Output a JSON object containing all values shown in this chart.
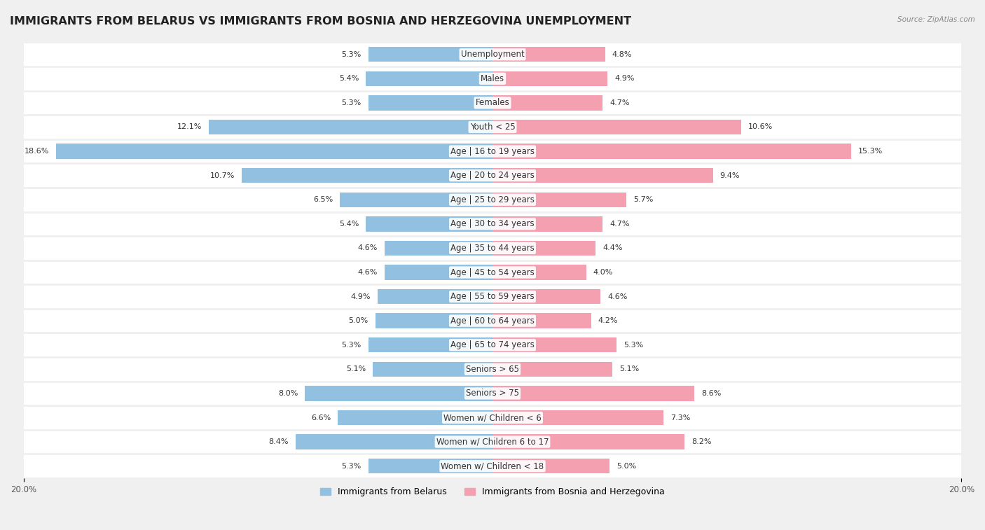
{
  "title": "IMMIGRANTS FROM BELARUS VS IMMIGRANTS FROM BOSNIA AND HERZEGOVINA UNEMPLOYMENT",
  "source": "Source: ZipAtlas.com",
  "categories": [
    "Unemployment",
    "Males",
    "Females",
    "Youth < 25",
    "Age | 16 to 19 years",
    "Age | 20 to 24 years",
    "Age | 25 to 29 years",
    "Age | 30 to 34 years",
    "Age | 35 to 44 years",
    "Age | 45 to 54 years",
    "Age | 55 to 59 years",
    "Age | 60 to 64 years",
    "Age | 65 to 74 years",
    "Seniors > 65",
    "Seniors > 75",
    "Women w/ Children < 6",
    "Women w/ Children 6 to 17",
    "Women w/ Children < 18"
  ],
  "belarus_values": [
    5.3,
    5.4,
    5.3,
    12.1,
    18.6,
    10.7,
    6.5,
    5.4,
    4.6,
    4.6,
    4.9,
    5.0,
    5.3,
    5.1,
    8.0,
    6.6,
    8.4,
    5.3
  ],
  "bosnia_values": [
    4.8,
    4.9,
    4.7,
    10.6,
    15.3,
    9.4,
    5.7,
    4.7,
    4.4,
    4.0,
    4.6,
    4.2,
    5.3,
    5.1,
    8.6,
    7.3,
    8.2,
    5.0
  ],
  "belarus_color": "#92c0e0",
  "bosnia_color": "#f4a0b0",
  "belarus_label": "Immigrants from Belarus",
  "bosnia_label": "Immigrants from Bosnia and Herzegovina",
  "xlim": 20.0,
  "background_color": "#f0f0f0",
  "bar_bg_color": "#ffffff",
  "title_fontsize": 11.5,
  "label_fontsize": 8.5,
  "value_fontsize": 8,
  "bar_height": 0.62
}
